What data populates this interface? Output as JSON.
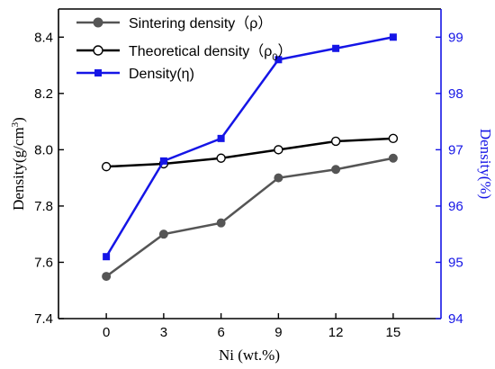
{
  "chart_data": {
    "type": "line",
    "x": [
      0,
      3,
      6,
      9,
      12,
      15
    ],
    "xlabel": "Ni (wt.%)",
    "ylabel": "Density(g/cm3)",
    "ylabel_right": "Density(%)",
    "ylim": [
      7.4,
      8.5
    ],
    "ylim_right": [
      94,
      99.5
    ],
    "yticks": [
      "7.4",
      "7.6",
      "7.8",
      "8.0",
      "8.2",
      "8.4"
    ],
    "yticks_right": [
      "94",
      "95",
      "96",
      "97",
      "98",
      "99"
    ],
    "xticks": [
      "0",
      "3",
      "6",
      "9",
      "12",
      "15"
    ],
    "legend_position": "top-left",
    "grid": false,
    "series": [
      {
        "name": "Sintering density（ρ）",
        "axis": "left",
        "values": [
          7.55,
          7.7,
          7.74,
          7.9,
          7.93,
          7.97
        ],
        "color": "#555555",
        "marker": "filled-circle"
      },
      {
        "name": "Theoretical density（ρ0）",
        "axis": "left",
        "values": [
          7.94,
          7.95,
          7.97,
          8.0,
          8.03,
          8.04
        ],
        "color": "#000000",
        "marker": "open-circle"
      },
      {
        "name": "Density(η)",
        "axis": "right",
        "values": [
          95.1,
          96.8,
          97.2,
          98.6,
          98.8,
          99.0
        ],
        "color": "#1515e6",
        "marker": "filled-square"
      }
    ]
  }
}
